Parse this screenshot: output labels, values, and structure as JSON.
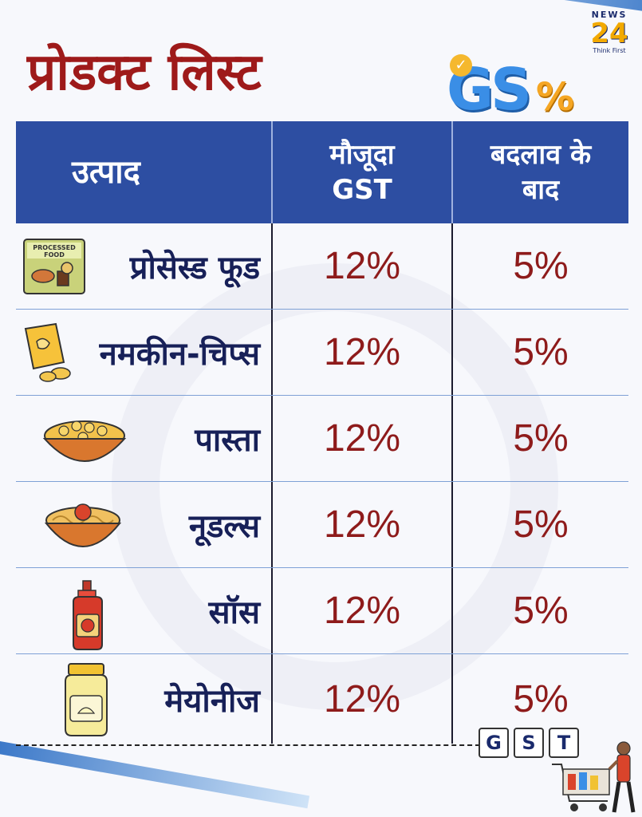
{
  "header": {
    "title": "प्रोडक्ट लिस्ट",
    "logo": {
      "news": "NEWS",
      "number": "24",
      "tagline": "Think First"
    },
    "gst_logo": {
      "letters": "GS",
      "percent": "%"
    }
  },
  "table": {
    "columns": [
      {
        "label": "उत्पाद"
      },
      {
        "label_line1": "मौजूदा",
        "label_line2": "GST"
      },
      {
        "label_line1": "बदलाव के",
        "label_line2": "बाद"
      }
    ],
    "rows": [
      {
        "icon": "processed-food-icon",
        "icon_text": [
          "PROCESSED",
          "FOOD"
        ],
        "product": "प्रोसेस्ड फूड",
        "current": "12%",
        "after": "5%"
      },
      {
        "icon": "chips-packet-icon",
        "product": "नमकीन-चिप्स",
        "current": "12%",
        "after": "5%"
      },
      {
        "icon": "pasta-bowl-icon",
        "product": "पास्ता",
        "current": "12%",
        "after": "5%"
      },
      {
        "icon": "noodles-bowl-icon",
        "product": "नूडल्स",
        "current": "12%",
        "after": "5%"
      },
      {
        "icon": "sauce-bottle-icon",
        "product": "सॉस",
        "current": "12%",
        "after": "5%"
      },
      {
        "icon": "mayonnaise-jar-icon",
        "product": "मेयोनीज",
        "current": "12%",
        "after": "5%"
      }
    ]
  },
  "footer": {
    "tiles": [
      "G",
      "S",
      "T"
    ],
    "illustration": "shopping-cart-icon"
  },
  "colors": {
    "title": "#9e1a1a",
    "header_bg": "#2d4ea2",
    "product_text": "#172058",
    "value_text": "#8e1b1b"
  }
}
